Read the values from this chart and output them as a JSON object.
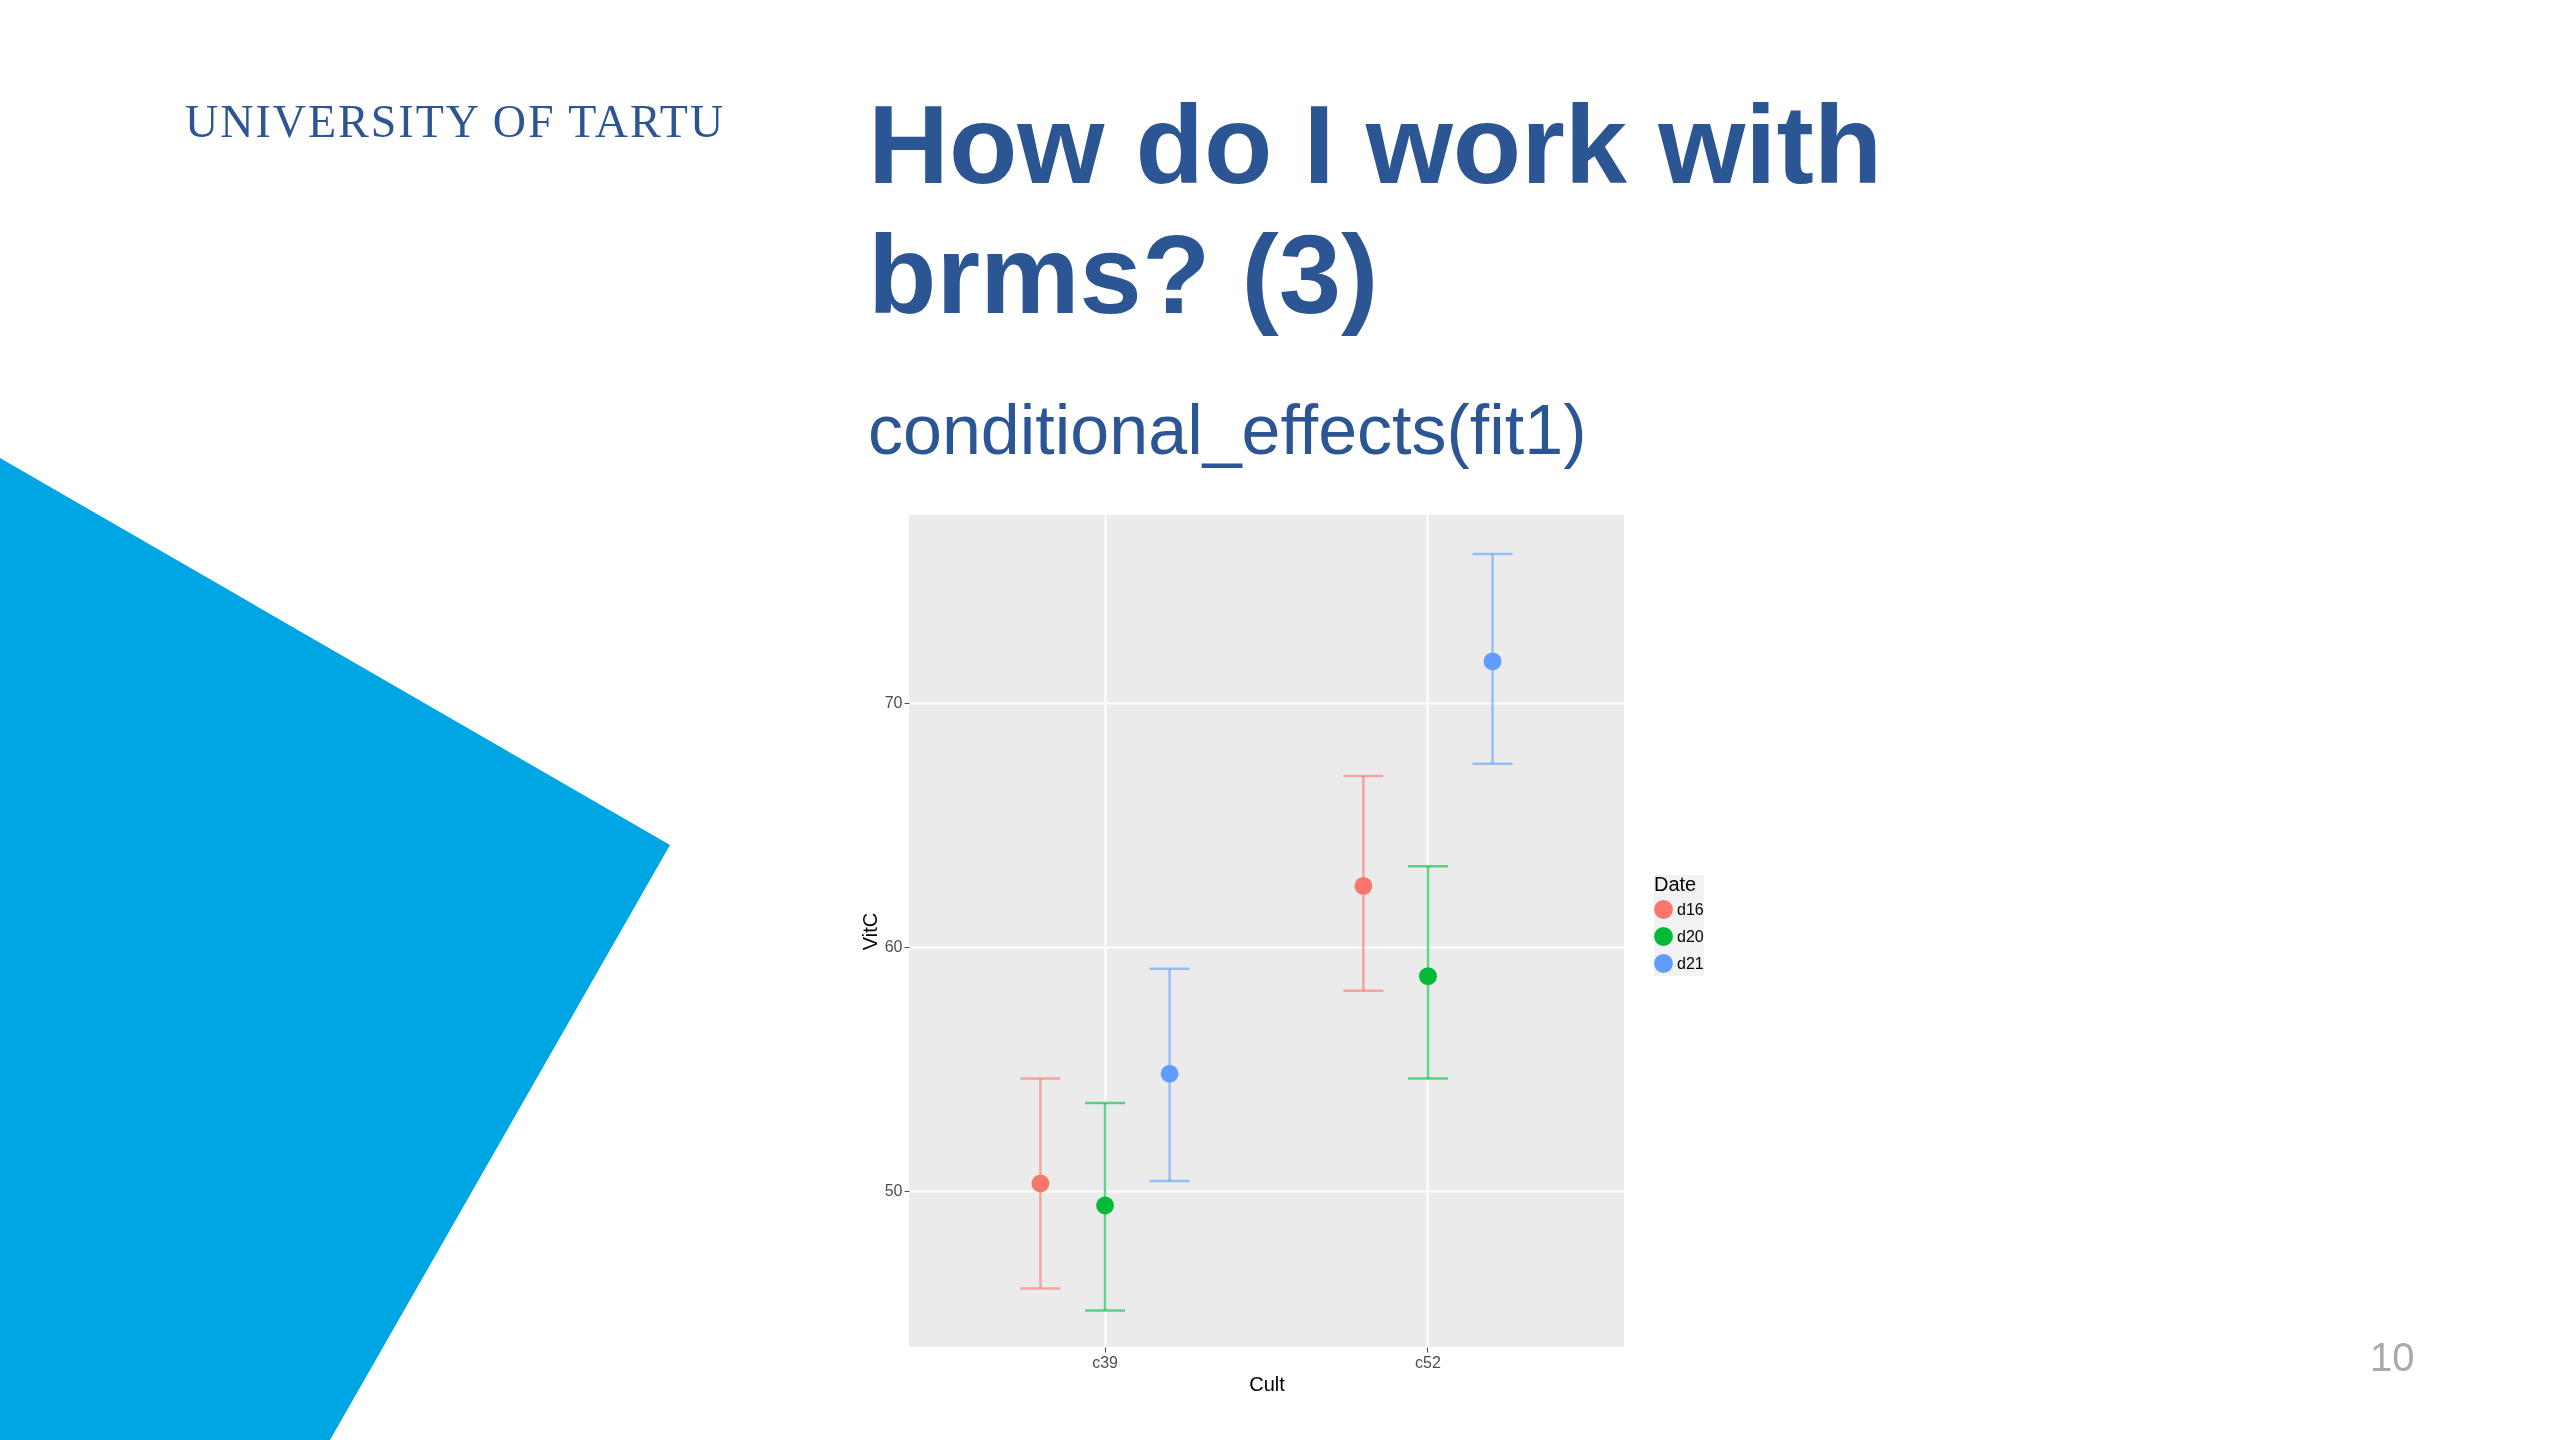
{
  "chart_data": {
    "type": "scatter",
    "title": "How do I work with brms? (3)",
    "subtitle": "conditional_effects(fit1)",
    "xlabel": "Cult",
    "ylabel": "VitC",
    "legend_title": "Date",
    "categories": [
      "c39",
      "c52"
    ],
    "series": [
      {
        "name": "d16",
        "color": "#f8766d",
        "values": [
          50.3,
          62.5
        ],
        "errors": [
          [
            46.0,
            54.6
          ],
          [
            58.2,
            67.0
          ]
        ]
      },
      {
        "name": "d20",
        "color": "#00ba38",
        "values": [
          49.4,
          58.8
        ],
        "errors": [
          [
            45.1,
            53.6
          ],
          [
            54.6,
            63.3
          ]
        ]
      },
      {
        "name": "d21",
        "color": "#619cff",
        "values": [
          54.8,
          71.7
        ],
        "errors": [
          [
            50.4,
            59.1
          ],
          [
            67.5,
            76.1
          ]
        ]
      }
    ],
    "ylim": [
      43.6,
      77.7
    ],
    "yticks": [
      50,
      60,
      70
    ],
    "grid": true,
    "legend": "right",
    "marker": "circle",
    "annotations": [
      "UNIVERSITY OF TARTU",
      "10"
    ]
  }
}
